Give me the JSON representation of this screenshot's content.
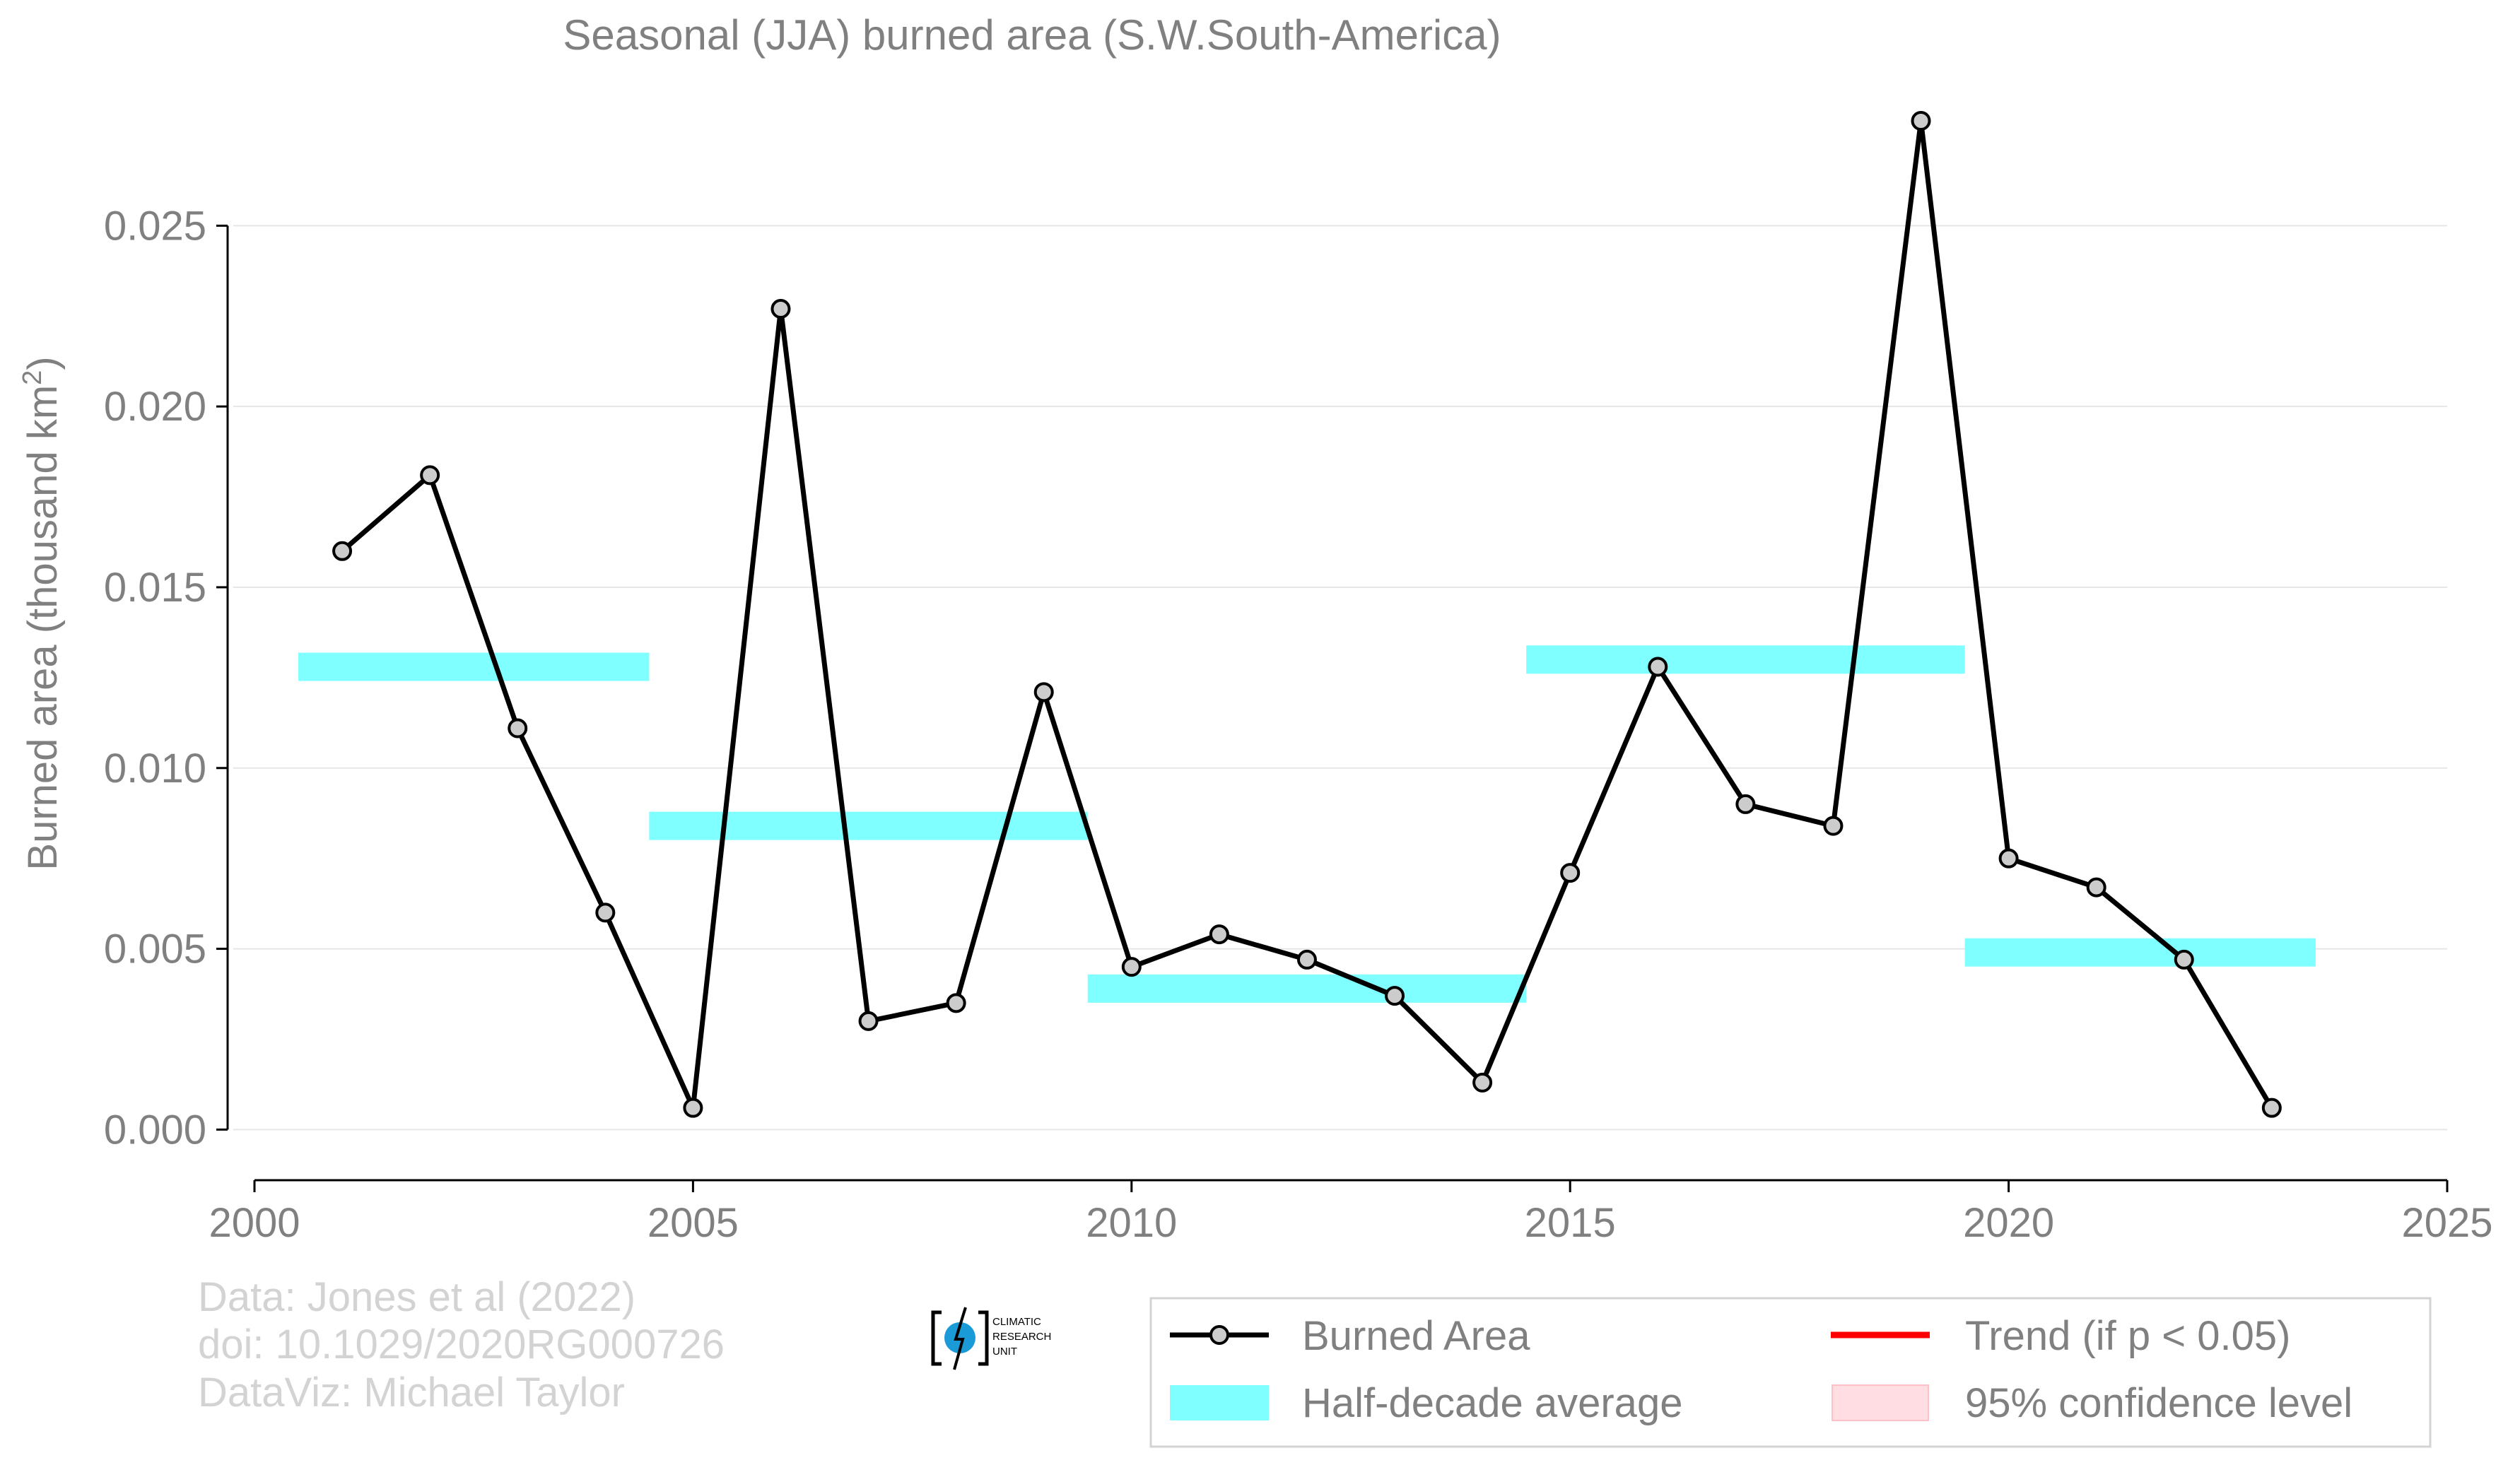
{
  "chart_data": {
    "type": "line",
    "title": "Seasonal (JJA) burned area (S.W.South-America)",
    "xlabel": "",
    "ylabel_main": "Burned area (thousand km",
    "ylabel_sup": "2",
    "ylabel_close": ")",
    "xlim": [
      2000,
      2025
    ],
    "ylim": [
      -0.0014,
      0.0279
    ],
    "x_ticks": [
      2000,
      2005,
      2010,
      2015,
      2020,
      2025
    ],
    "y_ticks": [
      0.0,
      0.005,
      0.01,
      0.015,
      0.02,
      0.025
    ],
    "x_tick_labels": [
      "2000",
      "2005",
      "2010",
      "2015",
      "2020",
      "2025"
    ],
    "y_tick_labels": [
      "0.000",
      "0.005",
      "0.010",
      "0.015",
      "0.020",
      "0.025"
    ],
    "grid": "horizontal",
    "series": [
      {
        "name": "Burned Area",
        "color": "#000000",
        "marker_fill": "#cccccc",
        "x": [
          2001,
          2002,
          2003,
          2004,
          2005,
          2006,
          2007,
          2008,
          2009,
          2010,
          2011,
          2012,
          2013,
          2014,
          2015,
          2016,
          2017,
          2018,
          2019,
          2020,
          2021,
          2022,
          2023
        ],
        "values": [
          0.016,
          0.0181,
          0.0111,
          0.006,
          0.0006,
          0.0227,
          0.003,
          0.0035,
          0.0121,
          0.0045,
          0.0054,
          0.0047,
          0.0037,
          0.0013,
          0.0071,
          0.0128,
          0.009,
          0.0084,
          0.0279,
          0.0075,
          0.0067,
          0.0047,
          0.0006
        ]
      }
    ],
    "half_decade_averages": {
      "name": "Half-decade average",
      "color": "#7fffff",
      "segments": [
        {
          "x_start": 2000.5,
          "x_end": 2004.5,
          "value": 0.0128
        },
        {
          "x_start": 2004.5,
          "x_end": 2009.5,
          "value": 0.0084
        },
        {
          "x_start": 2009.5,
          "x_end": 2014.5,
          "value": 0.0039
        },
        {
          "x_start": 2014.5,
          "x_end": 2019.5,
          "value": 0.013
        },
        {
          "x_start": 2019.5,
          "x_end": 2023.5,
          "value": 0.0049
        }
      ]
    },
    "legend": {
      "placement": "bottom-right",
      "items": [
        {
          "label": "Burned Area",
          "kind": "line-marker",
          "color": "#000000"
        },
        {
          "label": "Trend (if p < 0.05)",
          "kind": "line",
          "color": "#ff0000"
        },
        {
          "label": "Half-decade average",
          "kind": "band",
          "color": "#7fffff"
        },
        {
          "label": "95% confidence level",
          "kind": "band",
          "color": "#ffdde2"
        }
      ]
    },
    "credits": [
      "Data: Jones et al (2022)",
      "doi: 10.1029/2020RG000726",
      "DataViz: Michael Taylor"
    ],
    "logo_text": [
      "CLIMATIC",
      "RESEARCH",
      "UNIT"
    ]
  }
}
